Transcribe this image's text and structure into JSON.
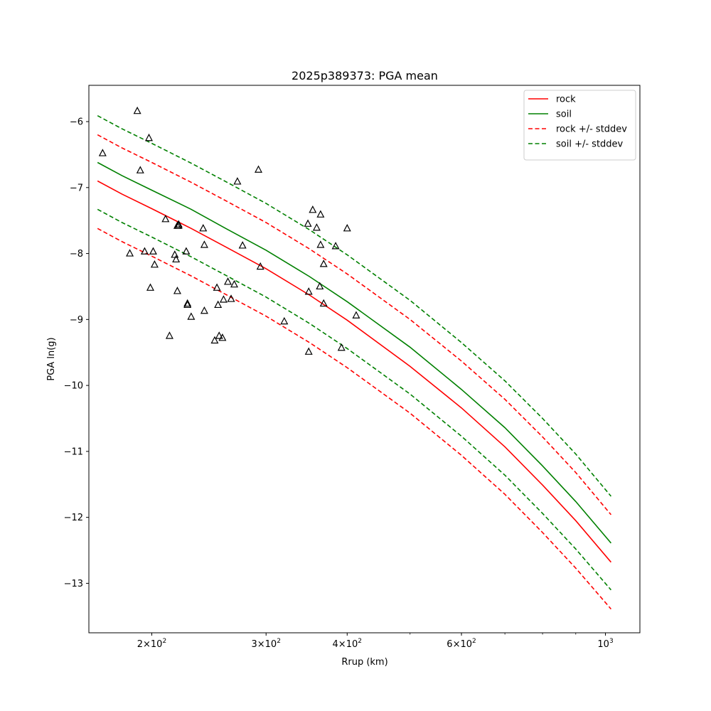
{
  "chart_data": {
    "type": "line",
    "title": "2025p389373: PGA mean",
    "xlabel": "Rrup (km)",
    "ylabel": "PGA ln(g)",
    "x_scale": "log",
    "xlim": [
      160,
      1130
    ],
    "ylim": [
      -13.75,
      -5.45
    ],
    "x_ticks": [
      {
        "value": 200,
        "base": "2",
        "exp": "2"
      },
      {
        "value": 300,
        "base": "3",
        "exp": "2"
      },
      {
        "value": 400,
        "base": "4",
        "exp": "2"
      },
      {
        "value": 600,
        "base": "6",
        "exp": "2"
      },
      {
        "value": 1000,
        "base": "",
        "exp": "3"
      }
    ],
    "x_minor_ticks": [
      500,
      700,
      800,
      900
    ],
    "y_ticks": [
      {
        "value": -6,
        "label": "−6"
      },
      {
        "value": -7,
        "label": "−7"
      },
      {
        "value": -8,
        "label": "−8"
      },
      {
        "value": -9,
        "label": "−9"
      },
      {
        "value": -10,
        "label": "−10"
      },
      {
        "value": -11,
        "label": "−11"
      },
      {
        "value": -12,
        "label": "−12"
      },
      {
        "value": -13,
        "label": "−13"
      }
    ],
    "legend_position": "upper-right",
    "grid": false,
    "x": [
      165,
      180,
      200,
      230,
      260,
      300,
      350,
      400,
      500,
      600,
      700,
      800,
      900,
      1020
    ],
    "series": [
      {
        "name": "rock",
        "color": "#ff0000",
        "style": "solid",
        "values": [
          -6.9,
          -7.1,
          -7.32,
          -7.62,
          -7.9,
          -8.23,
          -8.63,
          -9.01,
          -9.71,
          -10.34,
          -10.93,
          -11.51,
          -12.05,
          -12.68
        ]
      },
      {
        "name": "soil",
        "color": "#008000",
        "style": "solid",
        "values": [
          -6.62,
          -6.82,
          -7.04,
          -7.33,
          -7.62,
          -7.95,
          -8.35,
          -8.73,
          -9.42,
          -10.06,
          -10.64,
          -11.22,
          -11.76,
          -12.39
        ]
      },
      {
        "name": "rock +/- stddev",
        "color": "#ff0000",
        "style": "dashed",
        "values": [
          -6.2,
          -6.4,
          -6.62,
          -6.92,
          -7.2,
          -7.53,
          -7.93,
          -8.31,
          -9.0,
          -9.63,
          -10.21,
          -10.78,
          -11.32,
          -11.96
        ]
      },
      {
        "name": "",
        "color": "#ff0000",
        "style": "dashed",
        "values": [
          -7.62,
          -7.82,
          -8.04,
          -8.34,
          -8.62,
          -8.95,
          -9.35,
          -9.73,
          -10.42,
          -11.06,
          -11.65,
          -12.23,
          -12.77,
          -13.39
        ]
      },
      {
        "name": "soil +/- stddev",
        "color": "#008000",
        "style": "dashed",
        "values": [
          -5.91,
          -6.11,
          -6.33,
          -6.63,
          -6.91,
          -7.24,
          -7.64,
          -8.02,
          -8.71,
          -9.35,
          -9.93,
          -10.5,
          -11.04,
          -11.68
        ]
      },
      {
        "name": "",
        "color": "#008000",
        "style": "dashed",
        "values": [
          -7.33,
          -7.53,
          -7.75,
          -8.05,
          -8.33,
          -8.66,
          -9.06,
          -9.44,
          -10.13,
          -10.77,
          -11.36,
          -11.94,
          -12.48,
          -13.1
        ]
      }
    ],
    "observations": {
      "marker": "triangle",
      "points": [
        [
          168,
          -6.48
        ],
        [
          190,
          -5.84
        ],
        [
          192,
          -6.74
        ],
        [
          185,
          -8.0
        ],
        [
          195,
          -7.97
        ],
        [
          198,
          -6.25
        ],
        [
          199,
          -8.52
        ],
        [
          201,
          -7.97
        ],
        [
          202,
          -8.17
        ],
        [
          210,
          -7.48
        ],
        [
          213,
          -9.25
        ],
        [
          217,
          -8.02
        ],
        [
          218,
          -8.09
        ],
        [
          219,
          -7.58
        ],
        [
          219,
          -8.57
        ],
        [
          220,
          -7.56
        ],
        [
          220,
          -7.58
        ],
        [
          226,
          -7.97
        ],
        [
          227,
          -8.76
        ],
        [
          227,
          -8.78
        ],
        [
          230,
          -8.96
        ],
        [
          240,
          -7.62
        ],
        [
          241,
          -7.87
        ],
        [
          241,
          -8.87
        ],
        [
          250,
          -9.32
        ],
        [
          252,
          -8.52
        ],
        [
          253,
          -8.78
        ],
        [
          254,
          -9.25
        ],
        [
          257,
          -9.28
        ],
        [
          258,
          -8.7
        ],
        [
          262,
          -8.43
        ],
        [
          265,
          -8.69
        ],
        [
          268,
          -8.47
        ],
        [
          271,
          -6.91
        ],
        [
          276,
          -7.88
        ],
        [
          292,
          -6.73
        ],
        [
          294,
          -8.2
        ],
        [
          320,
          -9.03
        ],
        [
          348,
          -7.55
        ],
        [
          349,
          -8.58
        ],
        [
          349,
          -9.49
        ],
        [
          354,
          -7.34
        ],
        [
          359,
          -7.61
        ],
        [
          363,
          -8.5
        ],
        [
          364,
          -7.87
        ],
        [
          364,
          -7.41
        ],
        [
          368,
          -8.76
        ],
        [
          368,
          -8.16
        ],
        [
          384,
          -7.89
        ],
        [
          392,
          -9.43
        ],
        [
          400,
          -7.62
        ],
        [
          413,
          -8.94
        ]
      ]
    }
  }
}
